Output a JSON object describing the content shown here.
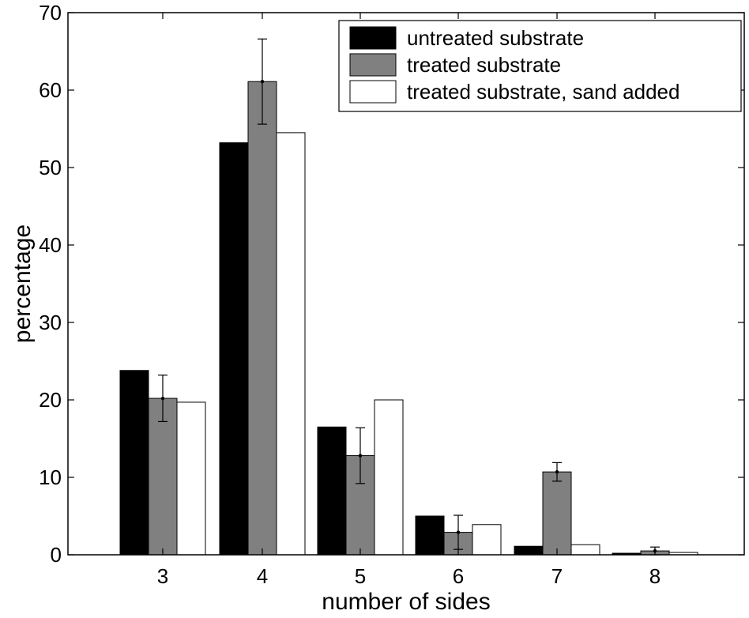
{
  "chart_data": {
    "type": "bar",
    "title": "",
    "xlabel": "number of sides",
    "ylabel": "percentage",
    "categories": [
      "3",
      "4",
      "5",
      "6",
      "7",
      "8"
    ],
    "ylim": [
      0,
      70
    ],
    "yticks": [
      "0",
      "10",
      "20",
      "30",
      "40",
      "50",
      "60",
      "70"
    ],
    "grid": false,
    "legend_position": "top-right",
    "series": [
      {
        "name": "untreated substrate",
        "color": "#000000",
        "values": [
          23.8,
          53.2,
          16.5,
          5.0,
          1.1,
          0.2
        ]
      },
      {
        "name": "treated substrate",
        "color": "#808080",
        "values": [
          20.2,
          61.1,
          12.8,
          2.9,
          10.7,
          0.5
        ],
        "errors": [
          3.0,
          5.5,
          3.6,
          2.2,
          1.2,
          0.5
        ]
      },
      {
        "name": "treated substrate, sand added",
        "color": "#ffffff",
        "values": [
          19.7,
          54.5,
          20.0,
          3.9,
          1.3,
          0.3
        ]
      }
    ]
  }
}
